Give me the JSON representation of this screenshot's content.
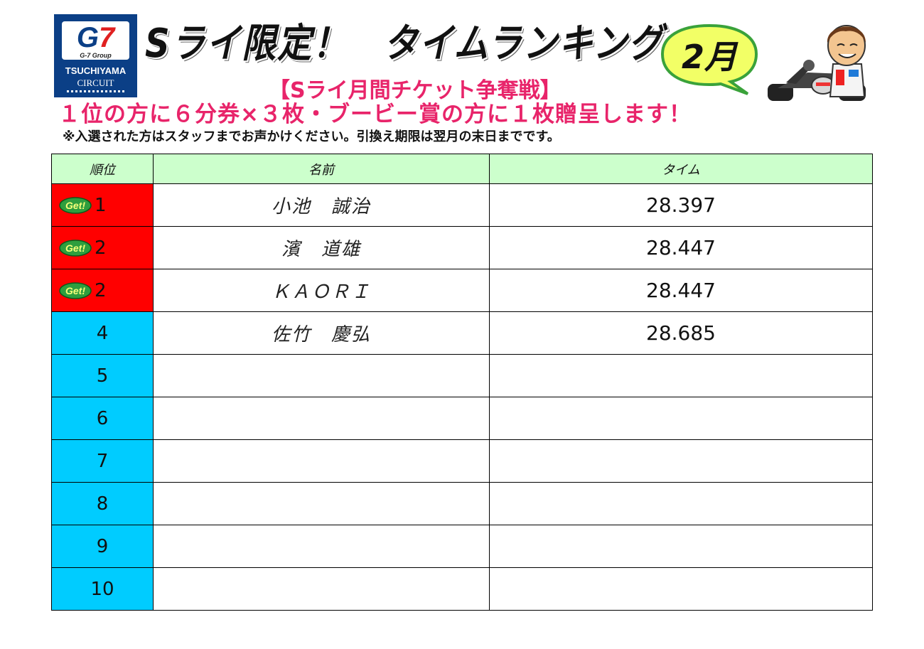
{
  "logo": {
    "mark_g": "G",
    "mark_seven": "7",
    "group": "G-7 Group",
    "line1": "TSUCHIYAMA",
    "line2": "CIRCUIT"
  },
  "title": "Sライ限定！　タイムランキング",
  "month": "2月",
  "subtitle": "【Sライ月間チケット争奪戦】",
  "prize": "１位の方に６分券×３枚・ブービー賞の方に１枚贈呈します！",
  "note": "※入選された方はスタッフまでお声かけください。引換え期限は翌月の末日までです。",
  "colors": {
    "winner_cell": "#ff0000",
    "rank_cell": "#00ccff",
    "header": "#ccffcc",
    "pink": "#e8246a",
    "get_badge": "#2e9e3e"
  },
  "badge": {
    "icon": "get-badge-icon",
    "text": "Get!"
  },
  "table": {
    "headers": [
      "順位",
      "名前",
      "タイム"
    ],
    "rows": [
      {
        "rank": "1",
        "name": "小池　誠治",
        "time": "28.397",
        "winner": true
      },
      {
        "rank": "2",
        "name": "濱　道雄",
        "time": "28.447",
        "winner": true
      },
      {
        "rank": "2",
        "name": "ＫＡＯＲＩ",
        "time": "28.447",
        "winner": true
      },
      {
        "rank": "4",
        "name": "佐竹　慶弘",
        "time": "28.685",
        "winner": false
      },
      {
        "rank": "5",
        "name": "",
        "time": "",
        "winner": false
      },
      {
        "rank": "6",
        "name": "",
        "time": "",
        "winner": false
      },
      {
        "rank": "7",
        "name": "",
        "time": "",
        "winner": false
      },
      {
        "rank": "8",
        "name": "",
        "time": "",
        "winner": false
      },
      {
        "rank": "9",
        "name": "",
        "time": "",
        "winner": false
      },
      {
        "rank": "10",
        "name": "",
        "time": "",
        "winner": false
      }
    ]
  }
}
